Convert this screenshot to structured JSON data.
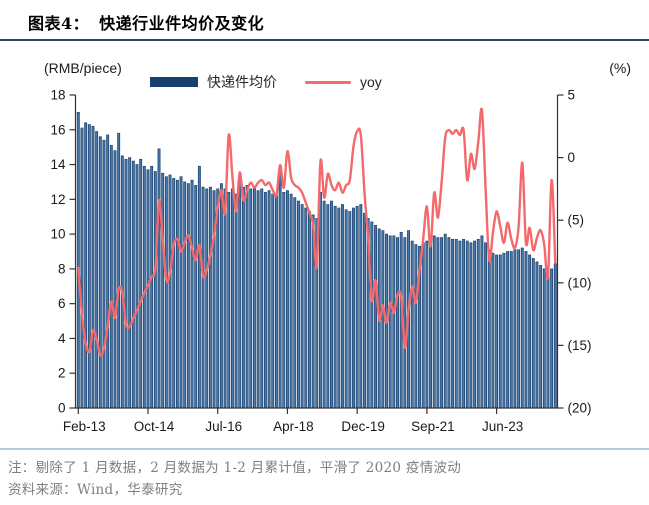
{
  "header": {
    "label": "图表4：",
    "title": "快递行业件均价及变化"
  },
  "legend": {
    "bar_label": "快递件均价",
    "line_label": "yoy",
    "bar_color": "#17406e",
    "line_color": "#f4696b"
  },
  "footer": {
    "note": "注：剔除了 1 月数据，2 月数据为 1-2 月累计值，平滑了 2020 疫情波动",
    "source": "资料来源：Wind，华泰研究"
  },
  "chart_data": {
    "type": "bar+line",
    "title": "快递行业件均价及变化",
    "x_description": "Monthly, Feb-2013 to Nov-2024, January excluded (Feb = Jan-Feb cumulative)",
    "left_axis": {
      "unit": "(RMB/piece)",
      "min": 0,
      "max": 18,
      "tick_step": 2,
      "tick_labels": [
        "18",
        "16",
        "14",
        "12",
        "10",
        "8",
        "6",
        "4",
        "2",
        "0"
      ]
    },
    "right_axis": {
      "unit": "(%)",
      "min": -20,
      "max": 5,
      "tick_step": 5,
      "tick_labels": [
        "5",
        "0",
        "(5)",
        "(10)",
        "(15)",
        "(20)"
      ]
    },
    "x_tick_labels": [
      "Feb-13",
      "Oct-14",
      "Jul-16",
      "Apr-18",
      "Dec-19",
      "Sep-21",
      "Jun-23"
    ],
    "x_tick_indices": [
      0,
      19,
      38,
      57,
      76,
      95,
      114
    ],
    "grid": false,
    "legend_position": "top-center",
    "series": [
      {
        "name": "快递件均价",
        "type": "bar",
        "axis": "left",
        "color": "#17406e",
        "values": [
          17.0,
          16.1,
          16.4,
          16.3,
          16.2,
          15.9,
          15.6,
          15.4,
          15.7,
          15.1,
          14.8,
          15.8,
          14.5,
          14.3,
          14.4,
          14.2,
          14.0,
          14.3,
          13.9,
          13.7,
          13.9,
          13.6,
          14.9,
          13.5,
          13.3,
          13.4,
          13.2,
          13.1,
          13.3,
          13.0,
          12.9,
          13.1,
          12.8,
          13.9,
          12.7,
          12.6,
          12.7,
          12.5,
          12.6,
          12.9,
          12.6,
          12.4,
          12.6,
          12.3,
          13.1,
          12.7,
          12.8,
          12.6,
          12.7,
          12.5,
          12.6,
          12.4,
          12.5,
          12.3,
          12.2,
          13.6,
          12.4,
          12.5,
          12.3,
          12.1,
          11.9,
          11.7,
          11.5,
          11.3,
          11.1,
          10.9,
          12.4,
          11.9,
          11.7,
          11.9,
          11.6,
          11.5,
          11.7,
          11.4,
          11.3,
          11.5,
          11.6,
          11.7,
          11.2,
          10.9,
          10.7,
          10.5,
          10.3,
          10.2,
          10.0,
          9.9,
          9.9,
          9.8,
          10.1,
          9.8,
          10.2,
          9.6,
          9.4,
          9.3,
          9.5,
          9.6,
          9.7,
          9.9,
          9.8,
          9.8,
          10.0,
          9.8,
          9.7,
          9.7,
          9.6,
          9.7,
          9.6,
          9.5,
          9.6,
          9.7,
          9.9,
          9.5,
          9.1,
          8.9,
          8.8,
          8.8,
          8.9,
          9.0,
          9.0,
          9.1,
          9.1,
          9.2,
          9.0,
          8.8,
          8.6,
          8.4,
          8.2,
          8.0,
          7.9,
          8.0,
          8.3
        ]
      },
      {
        "name": "yoy",
        "type": "line",
        "axis": "right",
        "color": "#f4696b",
        "values": [
          -8.8,
          -12.5,
          -14.8,
          -15.5,
          -13.8,
          -14.5,
          -15.8,
          -15.2,
          -13.5,
          -11.5,
          -12.8,
          -10.5,
          -10.8,
          -13.3,
          -13.5,
          -12.8,
          -12.2,
          -11.5,
          -10.8,
          -10.2,
          -9.5,
          -8.8,
          -3.4,
          -6.5,
          -9.8,
          -9.2,
          -7.0,
          -6.5,
          -7.5,
          -6.8,
          -6.2,
          -7.2,
          -8.2,
          -7.0,
          -9.5,
          -9.0,
          -7.8,
          -6.2,
          -4.0,
          -2.6,
          -4.4,
          1.8,
          -1.5,
          -4.3,
          -1.2,
          -3.4,
          -2.6,
          -2.0,
          -2.4,
          -2.0,
          -1.8,
          -2.2,
          -2.0,
          -2.6,
          -3.0,
          -0.6,
          -2.4,
          0.5,
          -1.6,
          -2.2,
          -2.4,
          -2.8,
          -3.6,
          -4.4,
          -5.4,
          -8.7,
          -0.3,
          -3.2,
          -1.3,
          -2.2,
          -2.6,
          -2.0,
          -2.8,
          -2.2,
          -1.8,
          0.9,
          2.1,
          1.8,
          -2.8,
          -6.5,
          -11.4,
          -9.8,
          -13.0,
          -11.8,
          -13.2,
          -11.6,
          -12.4,
          -11.0,
          -11.1,
          -15.2,
          -12.2,
          -10.3,
          -11.6,
          -9.0,
          -6.5,
          -3.9,
          -7.1,
          -2.8,
          -4.8,
          -2.0,
          1.6,
          2.2,
          1.9,
          2.2,
          1.8,
          2.2,
          -1.8,
          0.3,
          -0.9,
          1.2,
          3.8,
          -2.5,
          -8.2,
          -6.0,
          -4.3,
          -5.5,
          -6.8,
          -5.2,
          -6.5,
          -7.2,
          -5.5,
          -0.4,
          -6.8,
          -5.6,
          -7.4,
          -6.4,
          -5.8,
          -7.0,
          -9.5,
          -1.8,
          -8.4
        ]
      }
    ]
  }
}
